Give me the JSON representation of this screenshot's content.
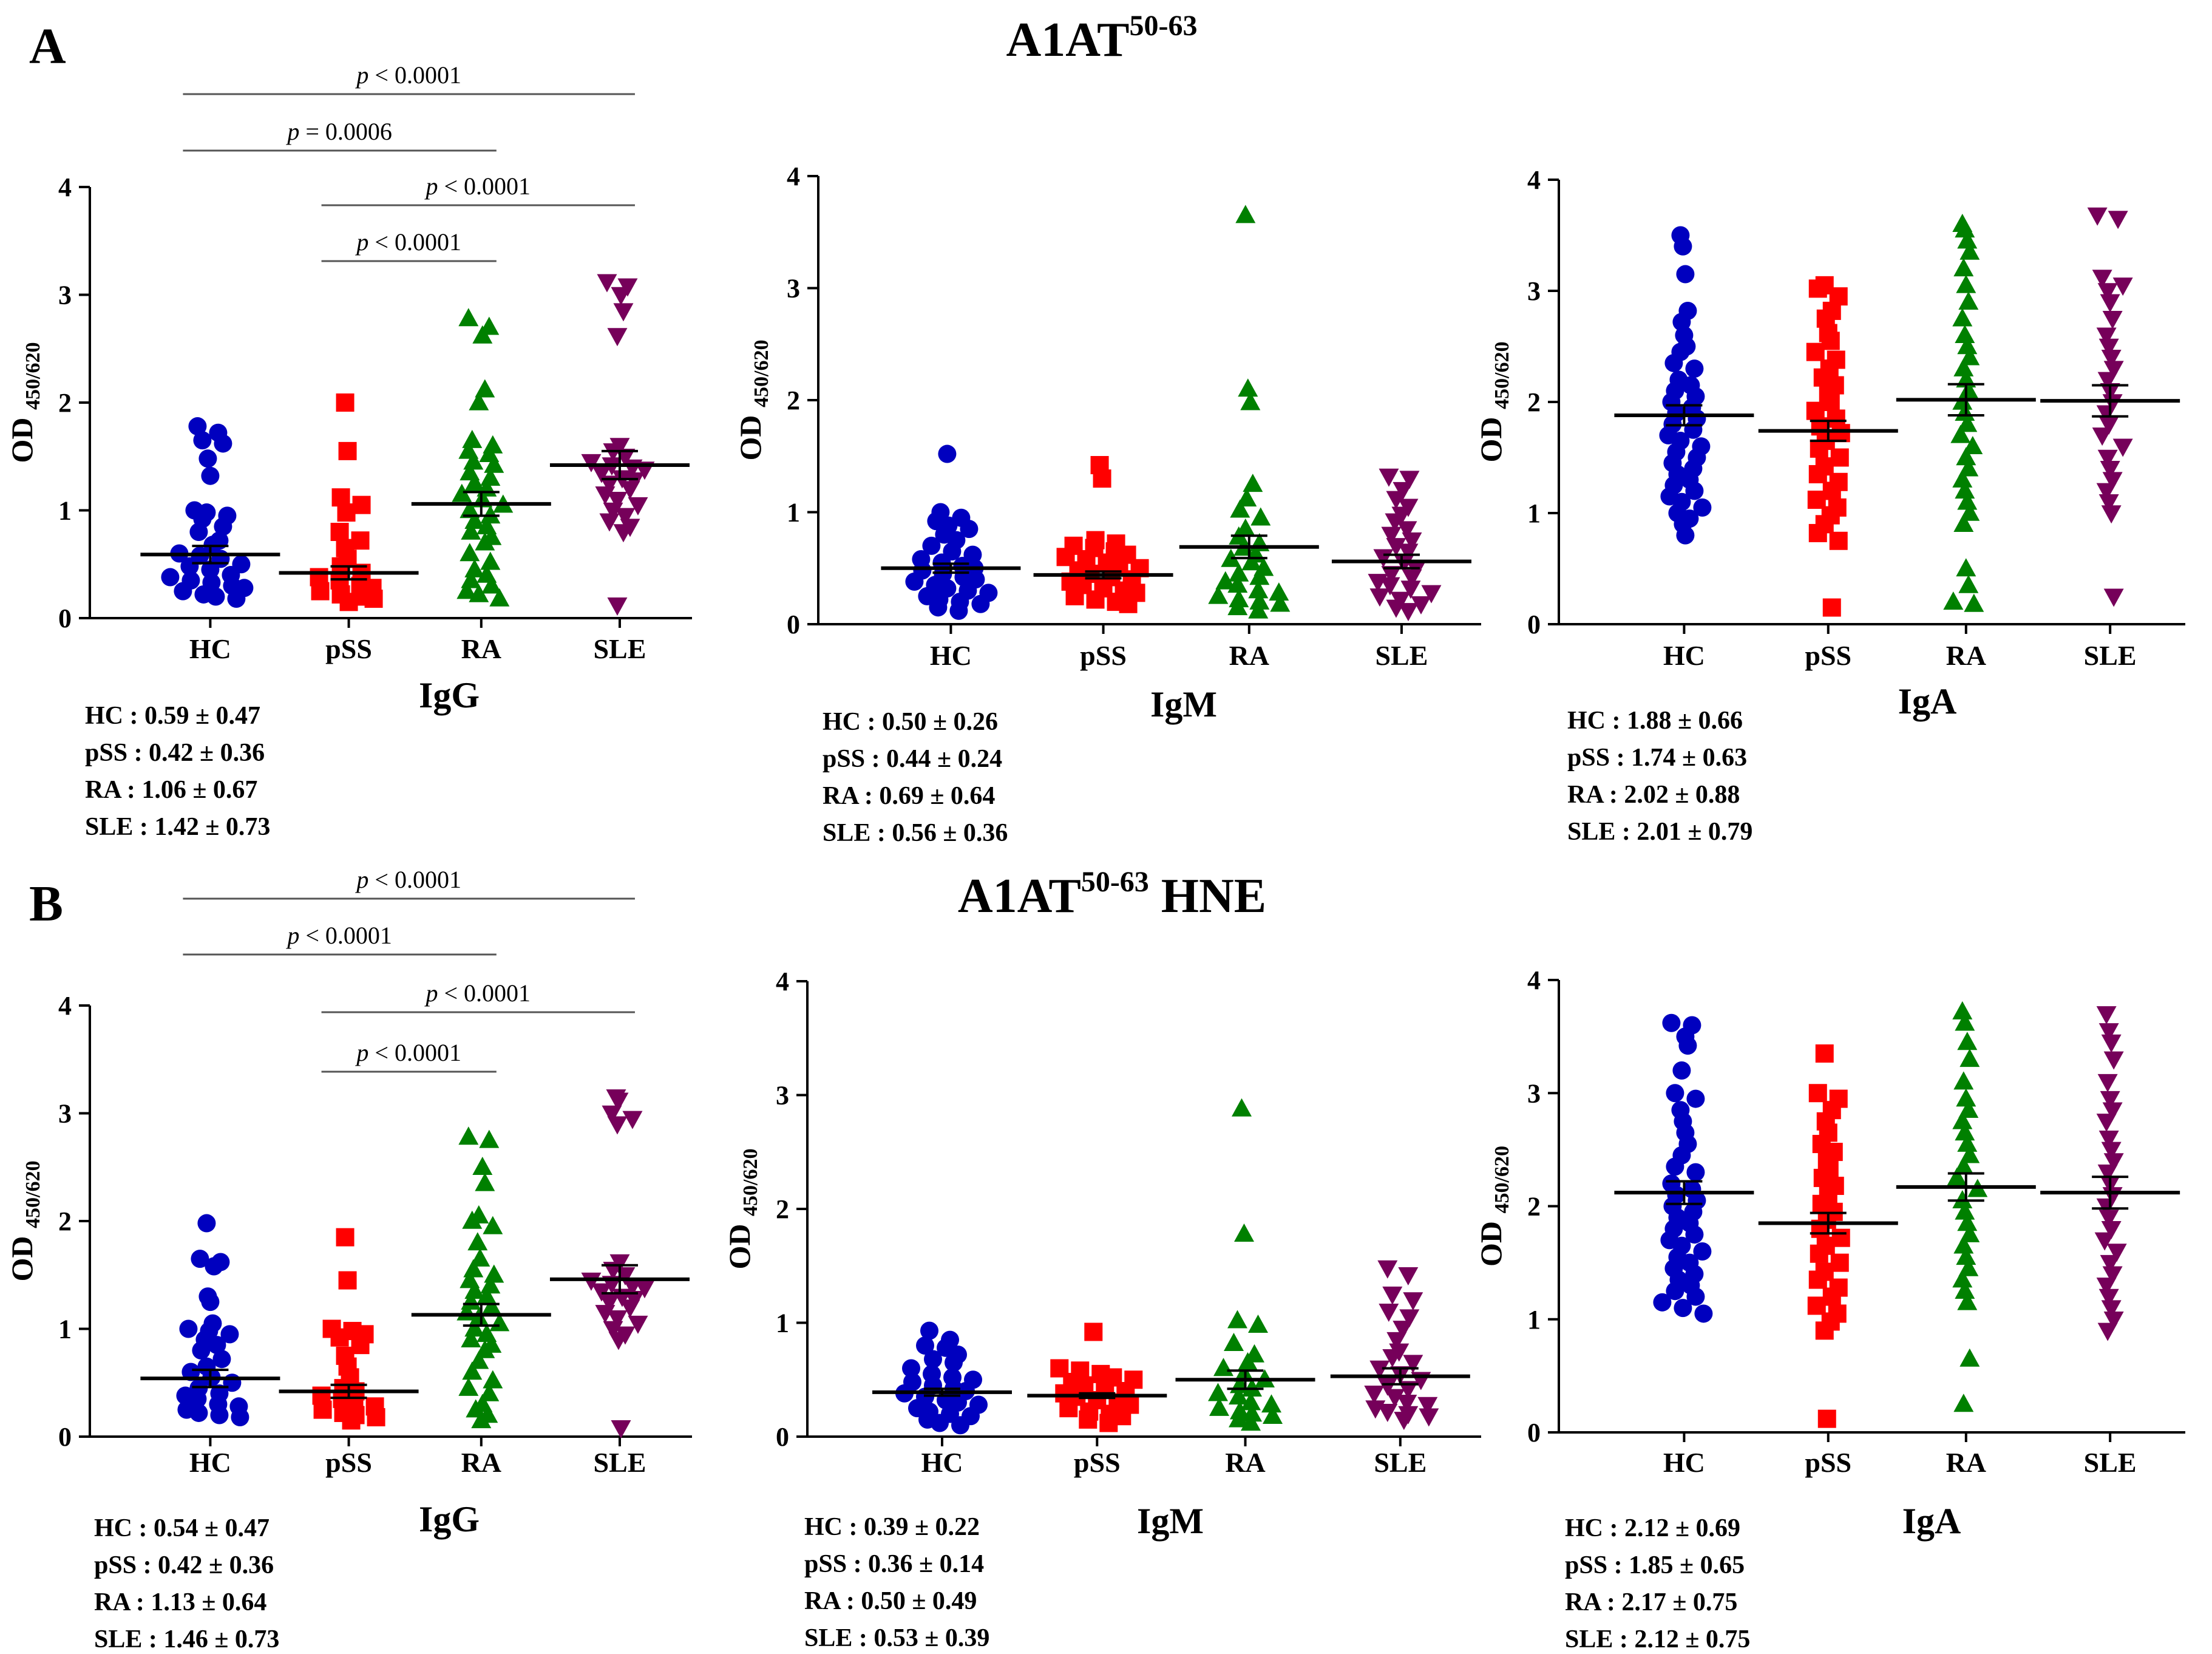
{
  "figure": {
    "sections": [
      {
        "letter": "A",
        "title": "A1AT",
        "title_superscript": "50-63",
        "title_suffix": ""
      },
      {
        "letter": "B",
        "title": "A1AT",
        "title_superscript": "50-63",
        "title_suffix": " HNE"
      }
    ]
  },
  "colors": {
    "HC": "#0000bf",
    "pSS": "#ff0000",
    "RA": "#008000",
    "SLE": "#76005a",
    "axis": "#000000"
  },
  "chart_data": [
    {
      "type": "scatter",
      "section": "A",
      "isotype": "IgG",
      "ylabel": "OD",
      "ylabel_subscript": "450/620",
      "ylim": [
        0,
        4
      ],
      "yticks": [
        0,
        1,
        2,
        3,
        4
      ],
      "categories": [
        "HC",
        "pSS",
        "RA",
        "SLE"
      ],
      "markers": [
        "circle",
        "square",
        "triangle-up",
        "triangle-down"
      ],
      "means": [
        0.59,
        0.42,
        1.06,
        1.42
      ],
      "sems": [
        0.08,
        0.06,
        0.11,
        0.13
      ],
      "values": [
        [
          1.78,
          1.72,
          1.65,
          1.62,
          1.48,
          1.32,
          1.0,
          0.98,
          0.95,
          0.92,
          0.85,
          0.8,
          0.72,
          0.68,
          0.6,
          0.58,
          0.55,
          0.5,
          0.48,
          0.45,
          0.4,
          0.38,
          0.35,
          0.33,
          0.3,
          0.28,
          0.25,
          0.22,
          0.2,
          0.18
        ],
        [
          2.0,
          1.55,
          1.12,
          1.05,
          0.98,
          0.8,
          0.72,
          0.65,
          0.55,
          0.48,
          0.42,
          0.38,
          0.35,
          0.3,
          0.28,
          0.25,
          0.22,
          0.2,
          0.18,
          0.15
        ],
        [
          2.78,
          2.7,
          2.62,
          2.12,
          2.0,
          1.65,
          1.6,
          1.55,
          1.52,
          1.45,
          1.42,
          1.35,
          1.3,
          1.25,
          1.2,
          1.15,
          1.1,
          1.05,
          1.0,
          0.95,
          0.9,
          0.85,
          0.8,
          0.75,
          0.7,
          0.6,
          0.52,
          0.45,
          0.4,
          0.35,
          0.3,
          0.25,
          0.22,
          0.18
        ],
        [
          3.12,
          3.08,
          3.0,
          2.85,
          2.62,
          1.6,
          1.55,
          1.5,
          1.45,
          1.42,
          1.4,
          1.38,
          1.35,
          1.3,
          1.28,
          1.25,
          1.2,
          1.15,
          1.1,
          1.05,
          1.0,
          0.95,
          0.9,
          0.85,
          0.8,
          0.12
        ]
      ],
      "summary": [
        [
          "HC",
          "0.59",
          "0.47"
        ],
        [
          "pSS",
          "0.42",
          "0.36"
        ],
        [
          "RA",
          "1.06",
          "0.67"
        ],
        [
          "SLE",
          "1.42",
          "0.73"
        ]
      ],
      "comparisons": [
        {
          "from": "HC",
          "to": "SLE",
          "label": "p < 0.0001"
        },
        {
          "from": "HC",
          "to": "RA",
          "label": "p = 0.0006"
        },
        {
          "from": "pSS",
          "to": "SLE",
          "label": "p < 0.0001"
        },
        {
          "from": "pSS",
          "to": "RA",
          "label": "p < 0.0001"
        }
      ]
    },
    {
      "type": "scatter",
      "section": "A",
      "isotype": "IgM",
      "ylabel": "OD",
      "ylabel_subscript": "450/620",
      "ylim": [
        0,
        4
      ],
      "yticks": [
        0,
        1,
        2,
        3,
        4
      ],
      "categories": [
        "HC",
        "pSS",
        "RA",
        "SLE"
      ],
      "markers": [
        "circle",
        "square",
        "triangle-up",
        "triangle-down"
      ],
      "means": [
        0.5,
        0.44,
        0.69,
        0.56
      ],
      "sems": [
        0.04,
        0.03,
        0.1,
        0.06
      ],
      "values": [
        [
          1.52,
          1.0,
          0.95,
          0.92,
          0.88,
          0.85,
          0.8,
          0.75,
          0.7,
          0.65,
          0.62,
          0.58,
          0.55,
          0.52,
          0.5,
          0.48,
          0.45,
          0.42,
          0.4,
          0.38,
          0.35,
          0.32,
          0.3,
          0.28,
          0.25,
          0.22,
          0.2,
          0.18,
          0.15,
          0.12
        ],
        [
          1.42,
          1.3,
          0.75,
          0.72,
          0.7,
          0.68,
          0.65,
          0.62,
          0.6,
          0.58,
          0.55,
          0.52,
          0.5,
          0.48,
          0.45,
          0.42,
          0.4,
          0.38,
          0.35,
          0.32,
          0.3,
          0.28,
          0.25,
          0.22,
          0.2,
          0.18
        ],
        [
          3.65,
          2.1,
          1.98,
          1.25,
          1.12,
          1.02,
          0.95,
          0.85,
          0.78,
          0.72,
          0.68,
          0.62,
          0.58,
          0.55,
          0.5,
          0.45,
          0.42,
          0.38,
          0.35,
          0.3,
          0.28,
          0.25,
          0.22,
          0.2,
          0.18,
          0.15,
          0.12
        ],
        [
          1.32,
          1.3,
          1.2,
          1.12,
          1.05,
          0.98,
          0.92,
          0.85,
          0.8,
          0.75,
          0.7,
          0.65,
          0.6,
          0.55,
          0.5,
          0.45,
          0.42,
          0.38,
          0.35,
          0.32,
          0.28,
          0.25,
          0.22,
          0.18,
          0.15,
          0.12
        ]
      ],
      "summary": [
        [
          "HC",
          "0.50",
          "0.26"
        ],
        [
          "pSS",
          "0.44",
          "0.24"
        ],
        [
          "RA",
          "0.69",
          "0.64"
        ],
        [
          "SLE",
          "0.56",
          "0.36"
        ]
      ],
      "comparisons": []
    },
    {
      "type": "scatter",
      "section": "A",
      "isotype": "IgA",
      "ylabel": "OD",
      "ylabel_subscript": "450/620",
      "ylim": [
        0,
        4
      ],
      "yticks": [
        0,
        1,
        2,
        3,
        4
      ],
      "categories": [
        "HC",
        "pSS",
        "RA",
        "SLE"
      ],
      "markers": [
        "circle",
        "square",
        "triangle-up",
        "triangle-down"
      ],
      "means": [
        1.88,
        1.74,
        2.02,
        2.01
      ],
      "sems": [
        0.09,
        0.09,
        0.14,
        0.14
      ],
      "values": [
        [
          3.5,
          3.4,
          3.15,
          2.82,
          2.72,
          2.6,
          2.5,
          2.45,
          2.35,
          2.3,
          2.2,
          2.15,
          2.1,
          2.05,
          2.0,
          1.95,
          1.9,
          1.85,
          1.8,
          1.75,
          1.7,
          1.65,
          1.6,
          1.55,
          1.5,
          1.45,
          1.4,
          1.35,
          1.3,
          1.25,
          1.2,
          1.15,
          1.1,
          1.05,
          1.0,
          0.95,
          0.9,
          0.8
        ],
        [
          3.05,
          3.02,
          2.95,
          2.82,
          2.75,
          2.62,
          2.55,
          2.45,
          2.38,
          2.3,
          2.22,
          2.15,
          2.08,
          2.0,
          1.92,
          1.85,
          1.78,
          1.72,
          1.65,
          1.58,
          1.5,
          1.42,
          1.35,
          1.28,
          1.2,
          1.12,
          1.05,
          0.98,
          0.9,
          0.82,
          0.75,
          0.15
        ],
        [
          3.6,
          3.55,
          3.45,
          3.35,
          3.2,
          3.05,
          2.9,
          2.75,
          2.6,
          2.5,
          2.4,
          2.3,
          2.2,
          2.1,
          2.0,
          1.9,
          1.8,
          1.7,
          1.6,
          1.5,
          1.4,
          1.3,
          1.2,
          1.1,
          1.0,
          0.9,
          0.5,
          0.35,
          0.2,
          0.18
        ],
        [
          3.68,
          3.65,
          3.12,
          3.05,
          3.0,
          2.9,
          2.75,
          2.6,
          2.5,
          2.4,
          2.3,
          2.2,
          2.1,
          2.0,
          1.9,
          1.8,
          1.7,
          1.6,
          1.5,
          1.4,
          1.3,
          1.2,
          1.1,
          1.0,
          0.25
        ]
      ],
      "summary": [
        [
          "HC",
          "1.88",
          "0.66"
        ],
        [
          "pSS",
          "1.74",
          "0.63"
        ],
        [
          "RA",
          "2.02",
          "0.88"
        ],
        [
          "SLE",
          "2.01",
          "0.79"
        ]
      ],
      "comparisons": []
    },
    {
      "type": "scatter",
      "section": "B",
      "isotype": "IgG",
      "ylabel": "OD",
      "ylabel_subscript": "450/620",
      "ylim": [
        0,
        4
      ],
      "yticks": [
        0,
        1,
        2,
        3,
        4
      ],
      "categories": [
        "HC",
        "pSS",
        "RA",
        "SLE"
      ],
      "markers": [
        "circle",
        "square",
        "triangle-up",
        "triangle-down"
      ],
      "means": [
        0.54,
        0.42,
        1.13,
        1.46
      ],
      "sems": [
        0.08,
        0.06,
        0.1,
        0.13
      ],
      "values": [
        [
          1.98,
          1.65,
          1.62,
          1.58,
          1.3,
          1.25,
          1.05,
          1.0,
          0.98,
          0.95,
          0.9,
          0.85,
          0.8,
          0.72,
          0.65,
          0.6,
          0.55,
          0.5,
          0.45,
          0.4,
          0.38,
          0.35,
          0.3,
          0.28,
          0.25,
          0.22,
          0.2,
          0.18
        ],
        [
          1.85,
          1.45,
          1.0,
          0.98,
          0.95,
          0.92,
          0.85,
          0.75,
          0.65,
          0.55,
          0.45,
          0.42,
          0.38,
          0.35,
          0.3,
          0.28,
          0.25,
          0.22,
          0.2,
          0.18,
          0.15
        ],
        [
          2.78,
          2.75,
          2.5,
          2.35,
          2.05,
          2.0,
          1.95,
          1.8,
          1.65,
          1.55,
          1.5,
          1.45,
          1.4,
          1.35,
          1.3,
          1.25,
          1.2,
          1.15,
          1.1,
          1.05,
          1.0,
          0.95,
          0.9,
          0.85,
          0.8,
          0.7,
          0.6,
          0.52,
          0.45,
          0.4,
          0.3,
          0.25,
          0.2,
          0.15
        ],
        [
          3.15,
          3.12,
          3.0,
          2.95,
          2.9,
          1.62,
          1.55,
          1.5,
          1.45,
          1.42,
          1.4,
          1.38,
          1.35,
          1.3,
          1.28,
          1.25,
          1.2,
          1.15,
          1.1,
          1.05,
          1.0,
          0.95,
          0.9,
          0.08
        ]
      ],
      "summary": [
        [
          "HC",
          "0.54",
          "0.47"
        ],
        [
          "pSS",
          "0.42",
          "0.36"
        ],
        [
          "RA",
          "1.13",
          "0.64"
        ],
        [
          "SLE",
          "1.46",
          "0.73"
        ]
      ],
      "comparisons": [
        {
          "from": "HC",
          "to": "SLE",
          "label": "p < 0.0001"
        },
        {
          "from": "HC",
          "to": "RA",
          "label": "p < 0.0001"
        },
        {
          "from": "pSS",
          "to": "SLE",
          "label": "p < 0.0001"
        },
        {
          "from": "pSS",
          "to": "RA",
          "label": "p < 0.0001"
        }
      ]
    },
    {
      "type": "scatter",
      "section": "B",
      "isotype": "IgM",
      "ylabel": "OD",
      "ylabel_subscript": "450/620",
      "ylim": [
        0,
        4
      ],
      "yticks": [
        0,
        1,
        2,
        3,
        4
      ],
      "categories": [
        "HC",
        "pSS",
        "RA",
        "SLE"
      ],
      "markers": [
        "circle",
        "square",
        "triangle-up",
        "triangle-down"
      ],
      "means": [
        0.39,
        0.36,
        0.5,
        0.53
      ],
      "sems": [
        0.03,
        0.02,
        0.08,
        0.07
      ],
      "values": [
        [
          0.93,
          0.85,
          0.8,
          0.78,
          0.72,
          0.68,
          0.65,
          0.6,
          0.55,
          0.52,
          0.5,
          0.48,
          0.45,
          0.42,
          0.4,
          0.38,
          0.35,
          0.32,
          0.3,
          0.28,
          0.25,
          0.22,
          0.2,
          0.18,
          0.15,
          0.12,
          0.1
        ],
        [
          0.92,
          0.6,
          0.58,
          0.55,
          0.52,
          0.5,
          0.48,
          0.45,
          0.42,
          0.4,
          0.38,
          0.35,
          0.32,
          0.3,
          0.28,
          0.25,
          0.22,
          0.2,
          0.18,
          0.15,
          0.12
        ],
        [
          2.88,
          1.78,
          1.02,
          0.98,
          0.82,
          0.72,
          0.65,
          0.6,
          0.55,
          0.5,
          0.45,
          0.42,
          0.38,
          0.35,
          0.3,
          0.28,
          0.25,
          0.22,
          0.2,
          0.18,
          0.15,
          0.12
        ],
        [
          1.48,
          1.42,
          1.25,
          1.2,
          1.1,
          1.05,
          0.95,
          0.85,
          0.75,
          0.7,
          0.65,
          0.6,
          0.55,
          0.5,
          0.45,
          0.42,
          0.38,
          0.35,
          0.3,
          0.28,
          0.25,
          0.22,
          0.2,
          0.18,
          0.15
        ]
      ],
      "summary": [
        [
          "HC",
          "0.39",
          "0.22"
        ],
        [
          "pSS",
          "0.36",
          "0.14"
        ],
        [
          "RA",
          "0.50",
          "0.49"
        ],
        [
          "SLE",
          "0.53",
          "0.39"
        ]
      ],
      "comparisons": []
    },
    {
      "type": "scatter",
      "section": "B",
      "isotype": "IgA",
      "ylabel": "OD",
      "ylabel_subscript": "450/620",
      "ylim": [
        0,
        4
      ],
      "yticks": [
        0,
        1,
        2,
        3,
        4
      ],
      "categories": [
        "HC",
        "pSS",
        "RA",
        "SLE"
      ],
      "markers": [
        "circle",
        "square",
        "triangle-up",
        "triangle-down"
      ],
      "means": [
        2.12,
        1.85,
        2.17,
        2.12
      ],
      "sems": [
        0.1,
        0.09,
        0.12,
        0.14
      ],
      "values": [
        [
          3.62,
          3.6,
          3.5,
          3.42,
          3.2,
          3.0,
          2.95,
          2.85,
          2.75,
          2.65,
          2.55,
          2.45,
          2.35,
          2.3,
          2.2,
          2.15,
          2.1,
          2.05,
          2.0,
          1.95,
          1.9,
          1.85,
          1.8,
          1.75,
          1.7,
          1.65,
          1.6,
          1.55,
          1.5,
          1.45,
          1.4,
          1.35,
          1.3,
          1.25,
          1.2,
          1.15,
          1.1,
          1.05
        ],
        [
          3.35,
          3.0,
          2.95,
          2.85,
          2.75,
          2.65,
          2.55,
          2.48,
          2.4,
          2.32,
          2.25,
          2.18,
          2.1,
          2.02,
          1.95,
          1.88,
          1.8,
          1.72,
          1.65,
          1.58,
          1.5,
          1.42,
          1.35,
          1.28,
          1.2,
          1.12,
          1.05,
          0.98,
          0.9,
          0.12
        ],
        [
          3.72,
          3.62,
          3.45,
          3.3,
          3.1,
          2.95,
          2.85,
          2.75,
          2.65,
          2.55,
          2.45,
          2.35,
          2.25,
          2.15,
          2.05,
          1.95,
          1.85,
          1.75,
          1.65,
          1.55,
          1.45,
          1.35,
          1.25,
          1.15,
          0.65,
          0.25
        ],
        [
          3.7,
          3.55,
          3.45,
          3.3,
          3.1,
          2.95,
          2.85,
          2.75,
          2.6,
          2.5,
          2.4,
          2.3,
          2.2,
          2.1,
          2.0,
          1.9,
          1.8,
          1.7,
          1.6,
          1.5,
          1.4,
          1.3,
          1.2,
          1.1,
          1.0,
          0.9
        ]
      ],
      "summary": [
        [
          "HC",
          "2.12",
          "0.69"
        ],
        [
          "pSS",
          "1.85",
          "0.65"
        ],
        [
          "RA",
          "2.17",
          "0.75"
        ],
        [
          "SLE",
          "2.12",
          "0.75"
        ]
      ],
      "comparisons": []
    }
  ]
}
